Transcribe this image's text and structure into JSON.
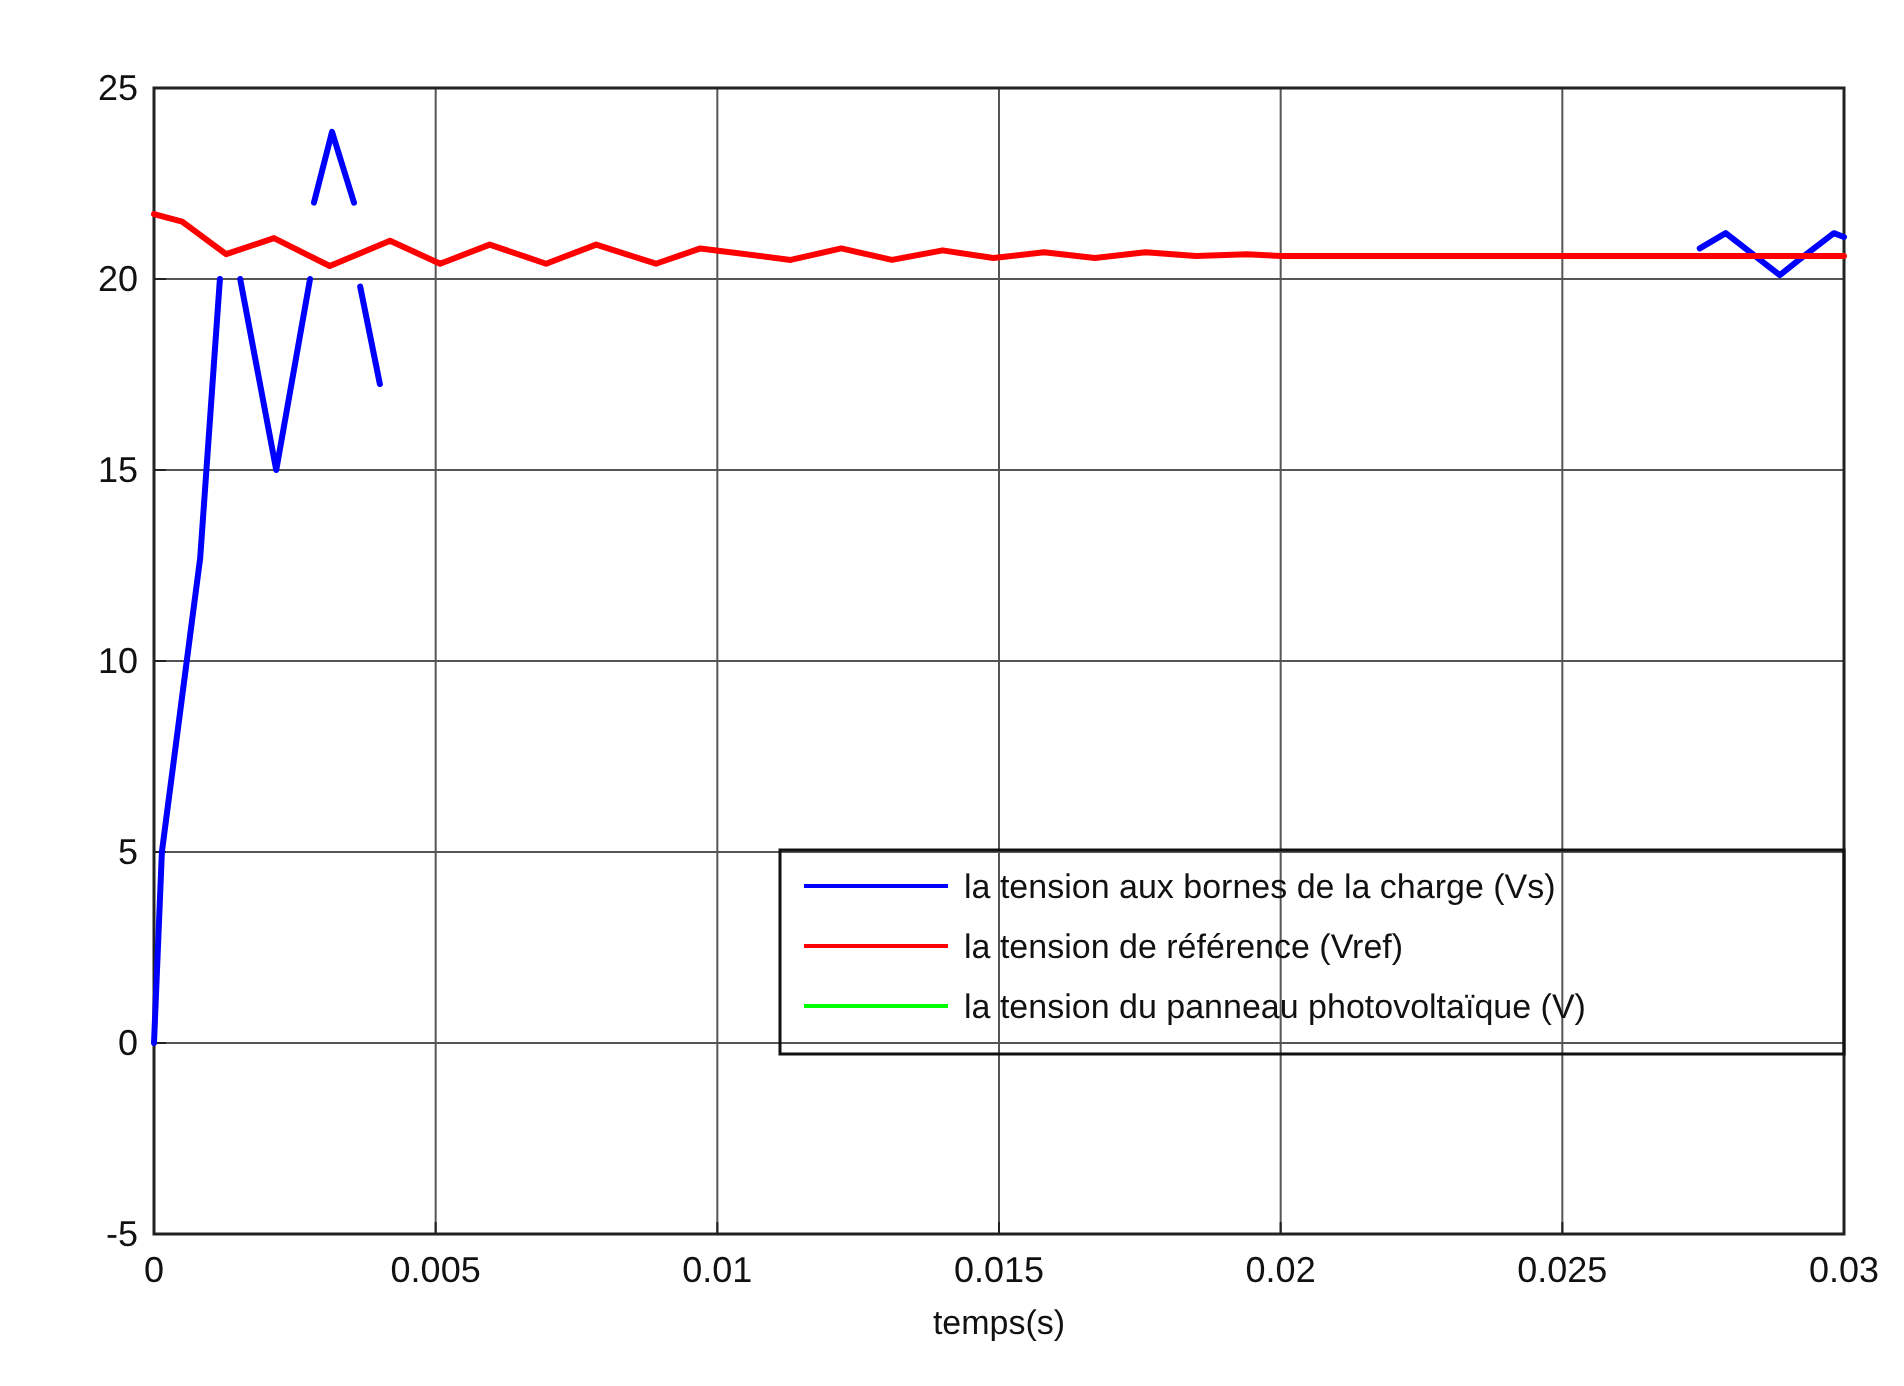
{
  "chart_data": {
    "type": "line",
    "xlabel": "temps(s)",
    "xlim": [
      0,
      0.03
    ],
    "ylim": [
      -5,
      25
    ],
    "xticks": [
      0,
      0.005,
      0.01,
      0.015,
      0.02,
      0.025,
      0.03
    ],
    "yticks": [
      -5,
      0,
      5,
      10,
      15,
      20,
      25
    ],
    "grid": true,
    "legend": "right",
    "line_style": "solid",
    "series": [
      {
        "name": "la tension aux bornes de la charge (Vs)",
        "color": "#0000ff",
        "x": [
          0,
          0.00014,
          0.00082,
          0.00117
        ],
        "values": [
          0,
          5,
          12.7,
          20
        ]
      },
      {
        "color": "#0000ff",
        "x": [
          0.00153,
          0.00217,
          0.00277
        ],
        "values": [
          20,
          15,
          20
        ]
      },
      {
        "color": "#0000ff",
        "x": [
          0.00284,
          0.00316,
          0.00355
        ],
        "values": [
          22,
          23.85,
          22
        ]
      },
      {
        "color": "#0000ff",
        "x": [
          0.00366,
          0.00401
        ],
        "values": [
          19.8,
          17.25
        ]
      },
      {
        "color": "#0000ff",
        "x": [
          0.02744,
          0.0279,
          0.02886,
          0.0292,
          0.02982,
          0.03
        ],
        "values": [
          20.8,
          21.2,
          20.1,
          20.5,
          21.2,
          21.1
        ]
      },
      {
        "name": "la tension de référence (Vref)",
        "color": "#ff0000",
        "x": [
          0,
          0.0005,
          0.00128,
          0.00213,
          0.00312,
          0.00419,
          0.00508,
          0.00596,
          0.00696,
          0.00785,
          0.00891,
          0.0097,
          0.0113,
          0.0122,
          0.0131,
          0.014,
          0.0149,
          0.0158,
          0.0167,
          0.0176,
          0.0185,
          0.0194,
          0.02,
          0.025,
          0.03
        ],
        "values": [
          21.7,
          21.5,
          20.65,
          21.07,
          20.34,
          21,
          20.4,
          20.9,
          20.4,
          20.9,
          20.4,
          20.8,
          20.5,
          20.8,
          20.5,
          20.75,
          20.55,
          20.7,
          20.55,
          20.7,
          20.6,
          20.65,
          20.6,
          20.6,
          20.6
        ]
      },
      {
        "name": "la tension du panneau photovoltaïque (V)",
        "color": "#00ff00"
      }
    ]
  }
}
